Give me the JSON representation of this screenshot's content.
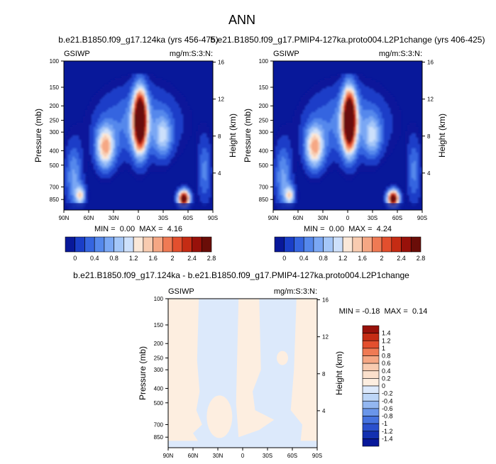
{
  "figure_title": "ANN",
  "chart_data": [
    {
      "type": "heatmap",
      "id": "panel1",
      "title": "b.e21.B1850.f09_g17.124ka (yrs 456-475)",
      "left_label": "GSIWP",
      "right_label": "mg/m:S:3:N:",
      "xlabel": "",
      "ylabel": "Pressure (mb)",
      "y2label": "Height (km)",
      "x_ticks": [
        "90N",
        "60N",
        "30N",
        "0",
        "30S",
        "60S",
        "90S"
      ],
      "y_ticks": [
        "100",
        "150",
        "200",
        "250",
        "300",
        "400",
        "500",
        "700",
        "850"
      ],
      "y2_ticks": [
        "16",
        "12",
        "8",
        "4"
      ],
      "stats": "MIN =  0.00  MAX =  4.16",
      "min": 0.0,
      "max": 4.16,
      "colorbar": {
        "orientation": "horizontal",
        "labels": [
          "0",
          "0.4",
          "0.8",
          "1.2",
          "1.6",
          "2",
          "2.4",
          "2.8"
        ],
        "colors": [
          "#08189a",
          "#1a3ec8",
          "#3565e0",
          "#5588ec",
          "#7aa7f4",
          "#a4c6f8",
          "#cde0fb",
          "#fbe8d8",
          "#f8cbb0",
          "#f5a784",
          "#ef7a54",
          "#e34f2e",
          "#c52c14",
          "#98110a",
          "#6a0d08"
        ]
      },
      "blobs": [
        {
          "lat": -2,
          "p": 250,
          "value": 4.16
        },
        {
          "lat": 40,
          "p": 380,
          "value": 1.9
        },
        {
          "lat": -55,
          "p": 840,
          "value": 3.6
        },
        {
          "lat": 70,
          "p": 800,
          "value": 1.4
        }
      ]
    },
    {
      "type": "heatmap",
      "id": "panel2",
      "title": "b.e21.B1850.f09_g17.PMIP4-127ka.proto004.L2P1change (yrs 406-425)",
      "left_label": "GSIWP",
      "right_label": "mg/m:S:3:N:",
      "xlabel": "",
      "ylabel": "Pressure (mb)",
      "y2label": "Height (km)",
      "x_ticks": [
        "90N",
        "60N",
        "30N",
        "0",
        "30S",
        "60S",
        "90S"
      ],
      "y_ticks": [
        "100",
        "150",
        "200",
        "250",
        "300",
        "400",
        "500",
        "700",
        "850"
      ],
      "y2_ticks": [
        "16",
        "12",
        "8",
        "4"
      ],
      "stats": "MIN =  0.00  MAX =  4.24",
      "min": 0.0,
      "max": 4.24,
      "colorbar": {
        "orientation": "horizontal",
        "labels": [
          "0",
          "0.4",
          "0.8",
          "1.2",
          "1.6",
          "2",
          "2.4",
          "2.8"
        ],
        "colors": [
          "#08189a",
          "#1a3ec8",
          "#3565e0",
          "#5588ec",
          "#7aa7f4",
          "#a4c6f8",
          "#cde0fb",
          "#fbe8d8",
          "#f8cbb0",
          "#f5a784",
          "#ef7a54",
          "#e34f2e",
          "#c52c14",
          "#98110a",
          "#6a0d08"
        ]
      },
      "blobs": [
        {
          "lat": -2,
          "p": 250,
          "value": 4.24
        },
        {
          "lat": 40,
          "p": 380,
          "value": 1.9
        },
        {
          "lat": -55,
          "p": 840,
          "value": 3.6
        },
        {
          "lat": 70,
          "p": 800,
          "value": 1.4
        }
      ]
    },
    {
      "type": "heatmap",
      "id": "panel3",
      "title": "b.e21.B1850.f09_g17.124ka - b.e21.B1850.f09_g17.PMIP4-127ka.proto004.L2P1change",
      "left_label": "GSIWP",
      "right_label": "mg/m:S:3:N:",
      "xlabel": "",
      "ylabel": "Pressure (mb)",
      "y2label": "Height (km)",
      "x_ticks": [
        "90N",
        "60N",
        "30N",
        "0",
        "30S",
        "60S",
        "90S"
      ],
      "y_ticks": [
        "100",
        "150",
        "200",
        "250",
        "300",
        "400",
        "500",
        "700",
        "850"
      ],
      "y2_ticks": [
        "16",
        "12",
        "8",
        "4"
      ],
      "stats": "MIN = -0.18  MAX =  0.14",
      "min": -0.18,
      "max": 0.14,
      "colorbar": {
        "orientation": "vertical",
        "labels": [
          "1.4",
          "1.2",
          "1",
          "0.8",
          "0.6",
          "0.4",
          "0.2",
          "0",
          "-0.2",
          "-0.4",
          "-0.6",
          "-0.8",
          "-1",
          "-1.2",
          "-1.4"
        ],
        "colors": [
          "#98110a",
          "#c52c14",
          "#e34f2e",
          "#ef7a54",
          "#f5a784",
          "#f8cbb0",
          "#fbe0cc",
          "#fdeee0",
          "#dce9fb",
          "#bdd6f7",
          "#93b7f1",
          "#6a96ea",
          "#4673df",
          "#2a50cd",
          "#1330b0",
          "#08189a"
        ]
      },
      "positive_bands_lat": [
        [
          90,
          53
        ],
        [
          5,
          -20
        ],
        [
          -65,
          -90
        ]
      ]
    }
  ]
}
